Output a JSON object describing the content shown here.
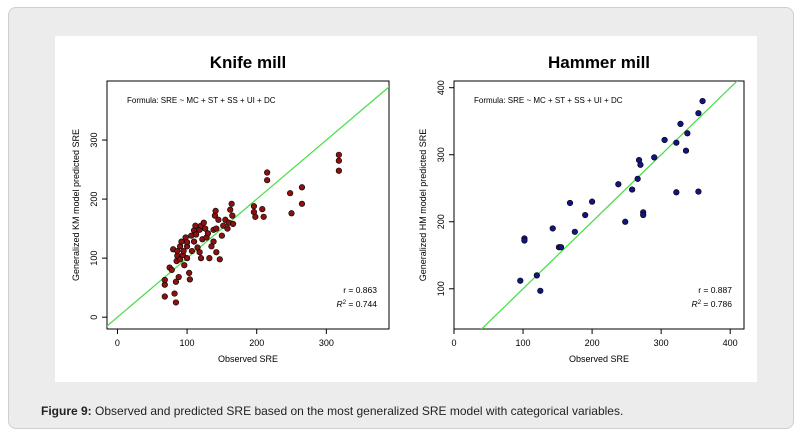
{
  "caption": {
    "label": "Figure 9:",
    "text": "Observed and predicted SRE based on the most generalized SRE model with categorical variables."
  },
  "colors": {
    "ref_line": "#44dd44",
    "knife_points": "#8b1010",
    "hammer_points": "#141480"
  },
  "chart_data": [
    {
      "type": "scatter",
      "title": "Knife mill",
      "xlabel": "Observed SRE",
      "ylabel": "Generalized KM model predicted SRE",
      "formula": "Formula: SRE ~ MC + ST + SS + UI + DC",
      "stats": {
        "r": "r = 0.863",
        "r2_prefix": "R",
        "r2_value": " = 0.744"
      },
      "xlim": [
        -15,
        390
      ],
      "ylim": [
        -20,
        400
      ],
      "xticks": [
        0,
        100,
        200,
        300
      ],
      "yticks": [
        0,
        100,
        200,
        300
      ],
      "reference_line": "y = x",
      "point_color": "#8b1010",
      "points": [
        [
          68,
          35
        ],
        [
          68,
          55
        ],
        [
          68,
          63
        ],
        [
          75,
          84
        ],
        [
          78,
          80
        ],
        [
          80,
          115
        ],
        [
          82,
          40
        ],
        [
          84,
          25
        ],
        [
          84,
          60
        ],
        [
          85,
          95
        ],
        [
          86,
          104
        ],
        [
          86,
          112
        ],
        [
          88,
          68
        ],
        [
          90,
          98
        ],
        [
          90,
          120
        ],
        [
          92,
          128
        ],
        [
          94,
          105
        ],
        [
          95,
          112
        ],
        [
          96,
          88
        ],
        [
          98,
          135
        ],
        [
          100,
          100
        ],
        [
          100,
          120
        ],
        [
          100,
          127
        ],
        [
          103,
          75
        ],
        [
          104,
          64
        ],
        [
          106,
          138
        ],
        [
          107,
          112
        ],
        [
          110,
          128
        ],
        [
          110,
          147
        ],
        [
          112,
          155
        ],
        [
          113,
          140
        ],
        [
          115,
          118
        ],
        [
          118,
          110
        ],
        [
          118,
          148
        ],
        [
          120,
          100
        ],
        [
          120,
          155
        ],
        [
          122,
          132
        ],
        [
          124,
          160
        ],
        [
          126,
          150
        ],
        [
          128,
          135
        ],
        [
          130,
          142
        ],
        [
          132,
          100
        ],
        [
          135,
          120
        ],
        [
          138,
          148
        ],
        [
          138,
          128
        ],
        [
          140,
          172
        ],
        [
          141,
          180
        ],
        [
          142,
          110
        ],
        [
          142,
          150
        ],
        [
          145,
          165
        ],
        [
          147,
          98
        ],
        [
          150,
          138
        ],
        [
          152,
          155
        ],
        [
          155,
          165
        ],
        [
          158,
          150
        ],
        [
          160,
          160
        ],
        [
          162,
          182
        ],
        [
          164,
          192
        ],
        [
          165,
          172
        ],
        [
          166,
          158
        ],
        [
          196,
          178
        ],
        [
          196,
          188
        ],
        [
          198,
          170
        ],
        [
          208,
          183
        ],
        [
          210,
          170
        ],
        [
          215,
          245
        ],
        [
          215,
          232
        ],
        [
          248,
          210
        ],
        [
          250,
          176
        ],
        [
          265,
          220
        ],
        [
          265,
          192
        ],
        [
          318,
          275
        ],
        [
          318,
          265
        ],
        [
          318,
          248
        ]
      ]
    },
    {
      "type": "scatter",
      "title": "Hammer mill",
      "xlabel": "Observed SRE",
      "ylabel": "Generalized HM model predicted SRE",
      "formula": "Formula: SRE ~ MC + ST + SS + UI + DC",
      "stats": {
        "r": "r = 0.887",
        "r2_prefix": "R",
        "r2_value": " = 0.786"
      },
      "xlim": [
        0,
        420
      ],
      "ylim": [
        40,
        410
      ],
      "xticks": [
        0,
        100,
        200,
        300,
        400
      ],
      "yticks": [
        100,
        200,
        300,
        400
      ],
      "reference_line": "y = x",
      "point_color": "#141480",
      "points": [
        [
          96,
          112
        ],
        [
          102,
          175
        ],
        [
          102,
          172
        ],
        [
          120,
          120
        ],
        [
          125,
          97
        ],
        [
          143,
          190
        ],
        [
          152,
          162
        ],
        [
          155,
          162
        ],
        [
          168,
          228
        ],
        [
          175,
          185
        ],
        [
          190,
          210
        ],
        [
          200,
          230
        ],
        [
          238,
          256
        ],
        [
          248,
          200
        ],
        [
          258,
          248
        ],
        [
          266,
          264
        ],
        [
          268,
          292
        ],
        [
          270,
          285
        ],
        [
          274,
          214
        ],
        [
          274,
          210
        ],
        [
          290,
          296
        ],
        [
          305,
          322
        ],
        [
          322,
          244
        ],
        [
          322,
          318
        ],
        [
          328,
          346
        ],
        [
          336,
          306
        ],
        [
          338,
          332
        ],
        [
          354,
          245
        ],
        [
          354,
          362
        ],
        [
          360,
          380
        ]
      ]
    }
  ]
}
